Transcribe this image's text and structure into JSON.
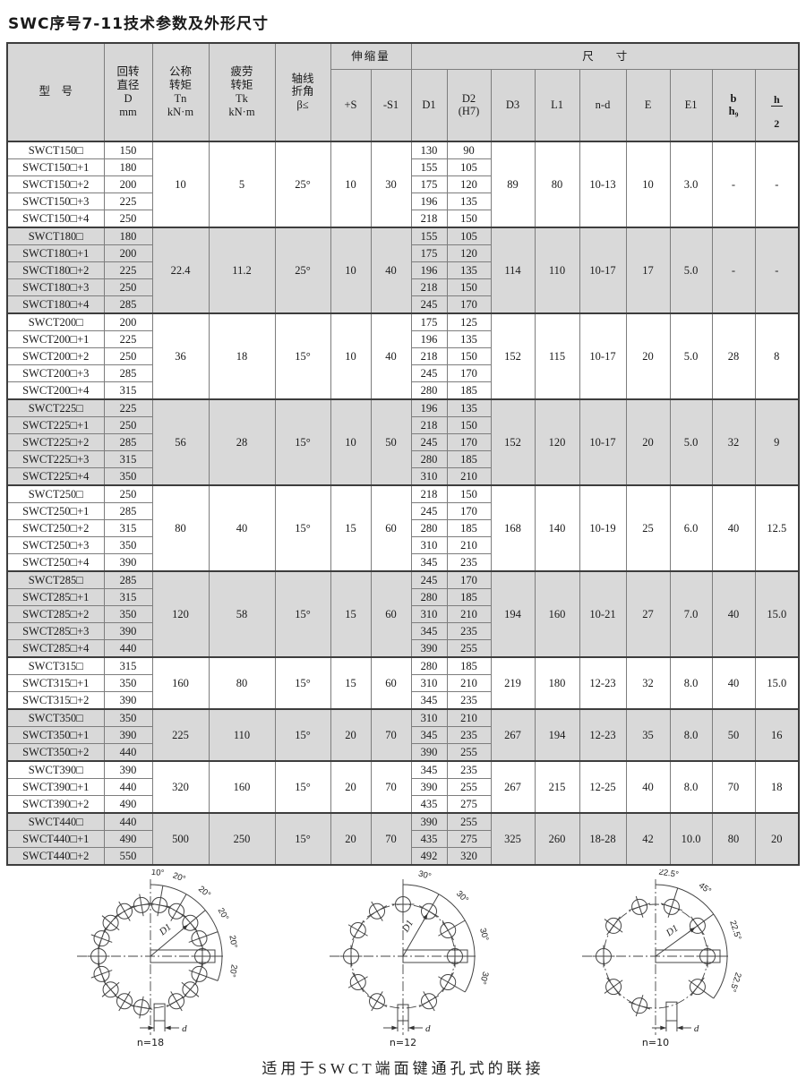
{
  "title": "SWC序号7-11技术参数及外形尺寸",
  "table": {
    "header": {
      "model": "型　号",
      "d": [
        "回转",
        "直径",
        "D",
        "mm"
      ],
      "tn": [
        "公称",
        "转矩",
        "Tn",
        "kN·m"
      ],
      "tk": [
        "疲劳",
        "转矩",
        "Tk",
        "kN·m"
      ],
      "beta": [
        "轴线",
        "折角",
        "β≤"
      ],
      "expansion": "伸缩量",
      "plus_s": "+S",
      "minus_s1": "-S1",
      "size": "尺　　寸",
      "d1": "D1",
      "d2": [
        "D2",
        "(H7)"
      ],
      "d3": "D3",
      "l1": "L1",
      "nd": "n-d",
      "e": "E",
      "e1": "E1",
      "b": [
        "b",
        "h₉"
      ],
      "h2": {
        "num": "h",
        "den": "2"
      }
    },
    "groups": [
      {
        "tn": "10",
        "tk": "5",
        "beta": "25°",
        "plus_s": "10",
        "minus_s1": "30",
        "d3": "89",
        "l1": "80",
        "nd": "10-13",
        "e": "10",
        "e1": "3.0",
        "b": "-",
        "h2": "-",
        "rows": [
          {
            "model": "SWCT150□",
            "d": "150",
            "d1": "130",
            "d2": "90"
          },
          {
            "model": "SWCT150□+1",
            "d": "180",
            "d1": "155",
            "d2": "105"
          },
          {
            "model": "SWCT150□+2",
            "d": "200",
            "d1": "175",
            "d2": "120"
          },
          {
            "model": "SWCT150□+3",
            "d": "225",
            "d1": "196",
            "d2": "135"
          },
          {
            "model": "SWCT150□+4",
            "d": "250",
            "d1": "218",
            "d2": "150"
          }
        ]
      },
      {
        "tn": "22.4",
        "tk": "11.2",
        "beta": "25°",
        "plus_s": "10",
        "minus_s1": "40",
        "d3": "114",
        "l1": "110",
        "nd": "10-17",
        "e": "17",
        "e1": "5.0",
        "b": "-",
        "h2": "-",
        "rows": [
          {
            "model": "SWCT180□",
            "d": "180",
            "d1": "155",
            "d2": "105"
          },
          {
            "model": "SWCT180□+1",
            "d": "200",
            "d1": "175",
            "d2": "120"
          },
          {
            "model": "SWCT180□+2",
            "d": "225",
            "d1": "196",
            "d2": "135"
          },
          {
            "model": "SWCT180□+3",
            "d": "250",
            "d1": "218",
            "d2": "150"
          },
          {
            "model": "SWCT180□+4",
            "d": "285",
            "d1": "245",
            "d2": "170"
          }
        ]
      },
      {
        "tn": "36",
        "tk": "18",
        "beta": "15°",
        "plus_s": "10",
        "minus_s1": "40",
        "d3": "152",
        "l1": "115",
        "nd": "10-17",
        "e": "20",
        "e1": "5.0",
        "b": "28",
        "h2": "8",
        "rows": [
          {
            "model": "SWCT200□",
            "d": "200",
            "d1": "175",
            "d2": "125"
          },
          {
            "model": "SWCT200□+1",
            "d": "225",
            "d1": "196",
            "d2": "135"
          },
          {
            "model": "SWCT200□+2",
            "d": "250",
            "d1": "218",
            "d2": "150"
          },
          {
            "model": "SWCT200□+3",
            "d": "285",
            "d1": "245",
            "d2": "170"
          },
          {
            "model": "SWCT200□+4",
            "d": "315",
            "d1": "280",
            "d2": "185"
          }
        ]
      },
      {
        "tn": "56",
        "tk": "28",
        "beta": "15°",
        "plus_s": "10",
        "minus_s1": "50",
        "d3": "152",
        "l1": "120",
        "nd": "10-17",
        "e": "20",
        "e1": "5.0",
        "b": "32",
        "h2": "9",
        "rows": [
          {
            "model": "SWCT225□",
            "d": "225",
            "d1": "196",
            "d2": "135"
          },
          {
            "model": "SWCT225□+1",
            "d": "250",
            "d1": "218",
            "d2": "150"
          },
          {
            "model": "SWCT225□+2",
            "d": "285",
            "d1": "245",
            "d2": "170"
          },
          {
            "model": "SWCT225□+3",
            "d": "315",
            "d1": "280",
            "d2": "185"
          },
          {
            "model": "SWCT225□+4",
            "d": "350",
            "d1": "310",
            "d2": "210"
          }
        ]
      },
      {
        "tn": "80",
        "tk": "40",
        "beta": "15°",
        "plus_s": "15",
        "minus_s1": "60",
        "d3": "168",
        "l1": "140",
        "nd": "10-19",
        "e": "25",
        "e1": "6.0",
        "b": "40",
        "h2": "12.5",
        "rows": [
          {
            "model": "SWCT250□",
            "d": "250",
            "d1": "218",
            "d2": "150"
          },
          {
            "model": "SWCT250□+1",
            "d": "285",
            "d1": "245",
            "d2": "170"
          },
          {
            "model": "SWCT250□+2",
            "d": "315",
            "d1": "280",
            "d2": "185"
          },
          {
            "model": "SWCT250□+3",
            "d": "350",
            "d1": "310",
            "d2": "210"
          },
          {
            "model": "SWCT250□+4",
            "d": "390",
            "d1": "345",
            "d2": "235"
          }
        ]
      },
      {
        "tn": "120",
        "tk": "58",
        "beta": "15°",
        "plus_s": "15",
        "minus_s1": "60",
        "d3": "194",
        "l1": "160",
        "nd": "10-21",
        "e": "27",
        "e1": "7.0",
        "b": "40",
        "h2": "15.0",
        "rows": [
          {
            "model": "SWCT285□",
            "d": "285",
            "d1": "245",
            "d2": "170"
          },
          {
            "model": "SWCT285□+1",
            "d": "315",
            "d1": "280",
            "d2": "185"
          },
          {
            "model": "SWCT285□+2",
            "d": "350",
            "d1": "310",
            "d2": "210"
          },
          {
            "model": "SWCT285□+3",
            "d": "390",
            "d1": "345",
            "d2": "235"
          },
          {
            "model": "SWCT285□+4",
            "d": "440",
            "d1": "390",
            "d2": "255"
          }
        ]
      },
      {
        "tn": "160",
        "tk": "80",
        "beta": "15°",
        "plus_s": "15",
        "minus_s1": "60",
        "d3": "219",
        "l1": "180",
        "nd": "12-23",
        "e": "32",
        "e1": "8.0",
        "b": "40",
        "h2": "15.0",
        "rows": [
          {
            "model": "SWCT315□",
            "d": "315",
            "d1": "280",
            "d2": "185"
          },
          {
            "model": "SWCT315□+1",
            "d": "350",
            "d1": "310",
            "d2": "210"
          },
          {
            "model": "SWCT315□+2",
            "d": "390",
            "d1": "345",
            "d2": "235"
          }
        ]
      },
      {
        "tn": "225",
        "tk": "110",
        "beta": "15°",
        "plus_s": "20",
        "minus_s1": "70",
        "d3": "267",
        "l1": "194",
        "nd": "12-23",
        "e": "35",
        "e1": "8.0",
        "b": "50",
        "h2": "16",
        "rows": [
          {
            "model": "SWCT350□",
            "d": "350",
            "d1": "310",
            "d2": "210"
          },
          {
            "model": "SWCT350□+1",
            "d": "390",
            "d1": "345",
            "d2": "235"
          },
          {
            "model": "SWCT350□+2",
            "d": "440",
            "d1": "390",
            "d2": "255"
          }
        ]
      },
      {
        "tn": "320",
        "tk": "160",
        "beta": "15°",
        "plus_s": "20",
        "minus_s1": "70",
        "d3": "267",
        "l1": "215",
        "nd": "12-25",
        "e": "40",
        "e1": "8.0",
        "b": "70",
        "h2": "18",
        "rows": [
          {
            "model": "SWCT390□",
            "d": "390",
            "d1": "345",
            "d2": "235"
          },
          {
            "model": "SWCT390□+1",
            "d": "440",
            "d1": "390",
            "d2": "255"
          },
          {
            "model": "SWCT390□+2",
            "d": "490",
            "d1": "435",
            "d2": "275"
          }
        ]
      },
      {
        "tn": "500",
        "tk": "250",
        "beta": "15°",
        "plus_s": "20",
        "minus_s1": "70",
        "d3": "325",
        "l1": "260",
        "nd": "18-28",
        "e": "42",
        "e1": "10.0",
        "b": "80",
        "h2": "20",
        "rows": [
          {
            "model": "SWCT440□",
            "d": "440",
            "d1": "390",
            "d2": "255"
          },
          {
            "model": "SWCT440□+1",
            "d": "490",
            "d1": "435",
            "d2": "275"
          },
          {
            "model": "SWCT440□+2",
            "d": "550",
            "d1": "492",
            "d2": "320"
          }
        ]
      }
    ]
  },
  "diagrams": [
    {
      "caption": "n=18",
      "holes": 18,
      "offset_deg": 10,
      "angle_labels": [
        "10°",
        "20°",
        "20°",
        "20°",
        "20°",
        "20°"
      ],
      "radius_label": "D1",
      "hole_dim_label": "d"
    },
    {
      "caption": "n=12",
      "holes": 12,
      "offset_deg": 0,
      "angle_labels": [
        "30°",
        "30°",
        "30°",
        "30°"
      ],
      "radius_label": "D1",
      "hole_dim_label": "d"
    },
    {
      "caption": "n=10",
      "holes": 10,
      "offset_deg": 18,
      "angle_labels": [
        "22.5°",
        "45°",
        "22.5°",
        "22.5°"
      ],
      "radius_label": "D1",
      "hole_dim_label": "d"
    }
  ],
  "footer_note": "适用于SWCT端面键通孔式的联接",
  "colors": {
    "header_bg": "#d7d7d7",
    "shade_bg": "#d9d9d9",
    "border": "#3d3d3d",
    "text": "#1a1a1a"
  }
}
